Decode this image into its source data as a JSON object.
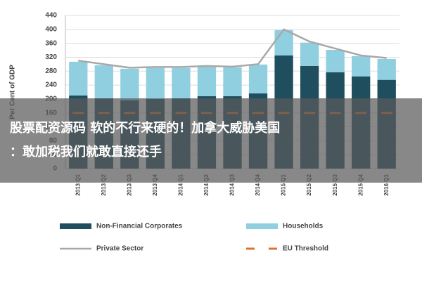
{
  "chart_data": {
    "type": "bar",
    "y_label": "Per Cent of GDP",
    "categories": [
      "2013 Q1",
      "2013 Q2",
      "2013 Q3",
      "2013 Q4",
      "2014 Q1",
      "2014 Q2",
      "2014 Q3",
      "2014 Q4",
      "2015 Q1",
      "2015 Q2",
      "2015 Q3",
      "2015 Q4",
      "2016 Q1"
    ],
    "series": [
      {
        "name": "Non-Financial Corporates",
        "color": "#1f4e5f",
        "values": [
          210,
          202,
          196,
          200,
          202,
          208,
          208,
          216,
          325,
          295,
          277,
          265,
          255
        ]
      },
      {
        "name": "Households",
        "color": "#8fcfe0",
        "values": [
          97,
          95,
          91,
          89,
          87,
          85,
          83,
          83,
          73,
          67,
          64,
          58,
          60
        ]
      },
      {
        "name": "Private Sector",
        "type": "line",
        "color": "#a8a8a8",
        "values": [
          310,
          300,
          290,
          292,
          292,
          295,
          293,
          300,
          400,
          365,
          345,
          325,
          318
        ]
      }
    ],
    "threshold": {
      "name": "EU Threshold",
      "color": "#e0702e",
      "value": 160
    },
    "ylim": [
      0,
      440
    ],
    "yticks": [
      0,
      40,
      80,
      120,
      160,
      200,
      240,
      280,
      320,
      360,
      400,
      440
    ],
    "grid": true,
    "overlay_text": [
      "股票配资源码 软的不行来硬的！加拿大威胁美国",
      "：敢加税我们就敢直接还手"
    ]
  }
}
